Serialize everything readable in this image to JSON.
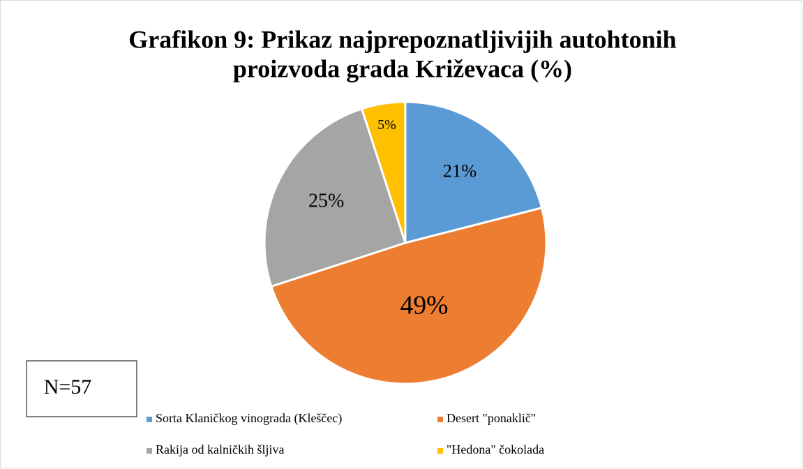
{
  "chart_data": {
    "type": "pie",
    "title": [
      "Grafikon 9: Prikaz najprepoznatljivijih autohtonih",
      "proizvoda grada Križevaca (%)"
    ],
    "categories": [
      "Sorta Klaničkog vinograda (Kleščec)",
      "Desert \"ponaklič\"",
      "Rakija od kalničkih šljiva",
      "\"Hedona\" čokolada"
    ],
    "values": [
      21,
      49,
      25,
      5
    ],
    "value_labels": [
      "21%",
      "49%",
      "25%",
      "5%"
    ],
    "colors": [
      "#5b9bd5",
      "#ed7d31",
      "#a5a5a5",
      "#ffc000"
    ],
    "annotation": "N=57",
    "legend": "bottom"
  }
}
